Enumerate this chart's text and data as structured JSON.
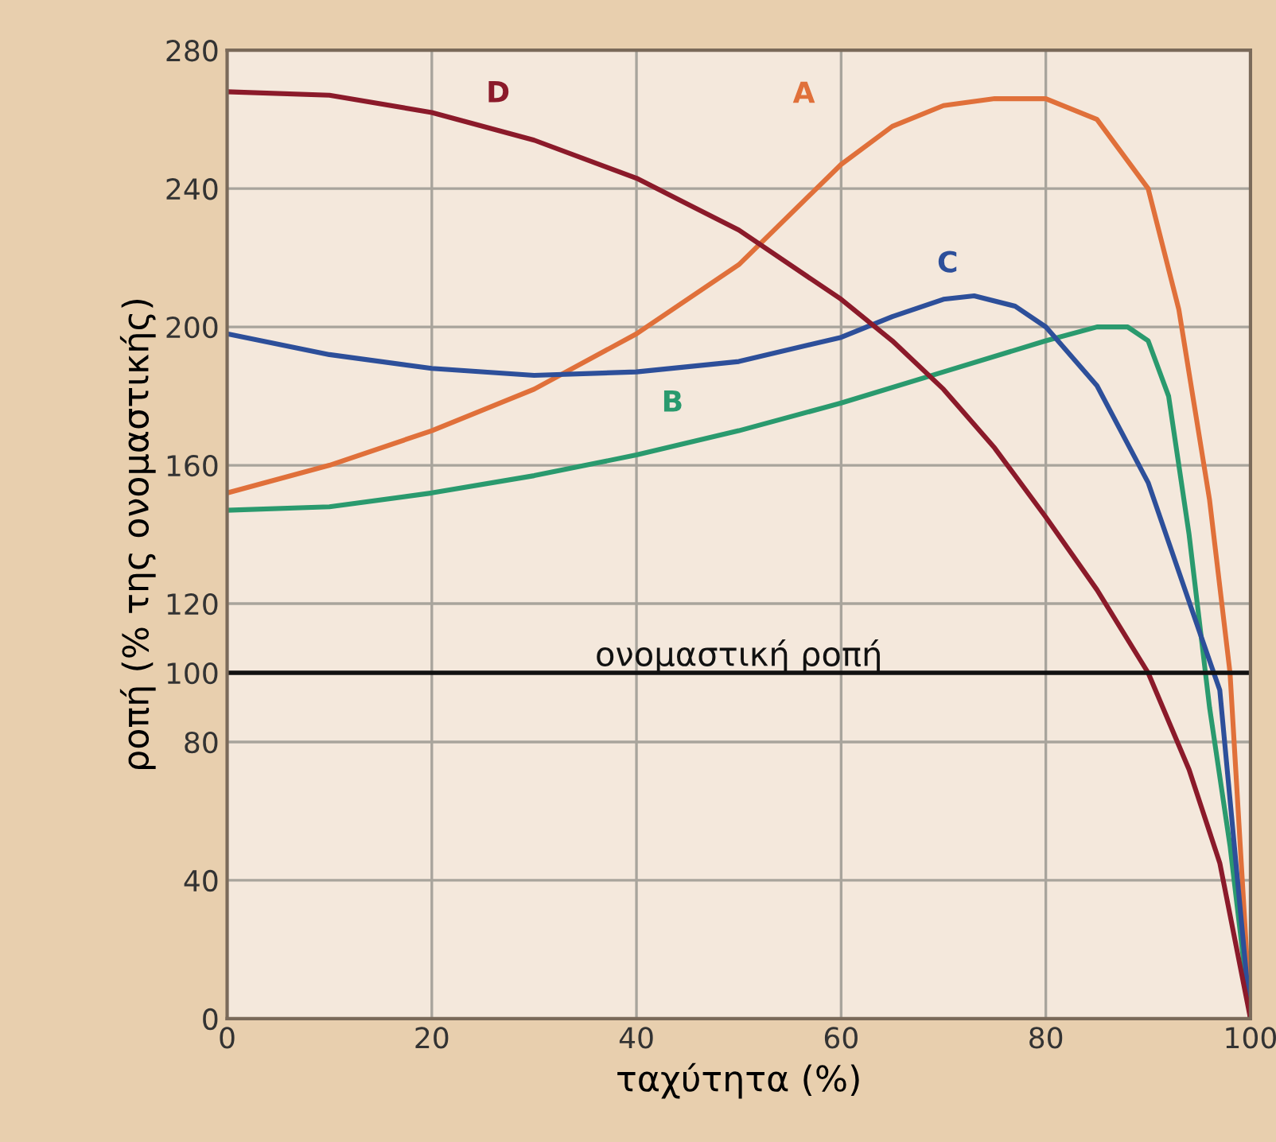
{
  "chart_data": {
    "type": "line",
    "xlabel": "ταχύτητα (%)",
    "ylabel": "ροπή (% της ονομαστικής)",
    "xlim": [
      0,
      100
    ],
    "ylim": [
      0,
      280
    ],
    "xticks": [
      0,
      20,
      40,
      60,
      80,
      100
    ],
    "yticks": [
      0,
      40,
      80,
      100,
      120,
      160,
      200,
      240,
      280
    ],
    "grid": true,
    "marker": "none",
    "line_style": "solid",
    "series": [
      {
        "name": "A",
        "color": "#e0703a",
        "x": [
          0,
          10,
          20,
          30,
          40,
          50,
          60,
          65,
          70,
          75,
          80,
          85,
          90,
          93,
          96,
          98,
          100
        ],
        "values": [
          152,
          160,
          170,
          182,
          198,
          218,
          247,
          258,
          264,
          266,
          266,
          260,
          240,
          205,
          150,
          100,
          0
        ]
      },
      {
        "name": "B",
        "color": "#2a9a6e",
        "x": [
          0,
          10,
          20,
          30,
          40,
          50,
          60,
          70,
          80,
          85,
          88,
          90,
          92,
          94,
          96,
          98,
          100
        ],
        "values": [
          147,
          148,
          152,
          157,
          163,
          170,
          178,
          187,
          196,
          200,
          200,
          196,
          180,
          140,
          90,
          50,
          0
        ]
      },
      {
        "name": "C",
        "color": "#2d4f9a",
        "x": [
          0,
          10,
          20,
          30,
          40,
          50,
          60,
          65,
          70,
          73,
          77,
          80,
          85,
          90,
          95,
          97,
          100
        ],
        "values": [
          198,
          192,
          188,
          186,
          187,
          190,
          197,
          203,
          208,
          209,
          206,
          200,
          183,
          155,
          112,
          95,
          0
        ]
      },
      {
        "name": "D",
        "color": "#8b1a2a",
        "x": [
          0,
          10,
          20,
          30,
          40,
          50,
          60,
          65,
          70,
          75,
          80,
          85,
          90,
          94,
          97,
          100
        ],
        "values": [
          268,
          267,
          262,
          254,
          243,
          228,
          208,
          196,
          182,
          165,
          145,
          124,
          100,
          72,
          45,
          0
        ]
      }
    ],
    "ref_lines": [
      {
        "axis": "y",
        "value": 100,
        "label": "ονομαστική ροπή",
        "color": "#111111"
      }
    ]
  }
}
